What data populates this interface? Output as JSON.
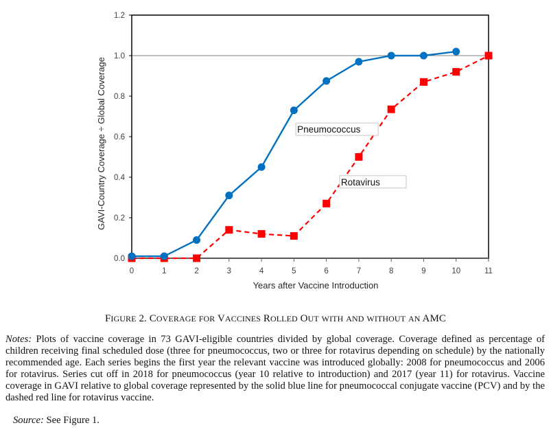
{
  "chart_data": {
    "type": "line",
    "title": "",
    "xlabel": "Years after Vaccine Introduction",
    "ylabel": "GAVI-Country Coverage ÷ Global Coverage",
    "xlim": [
      0,
      11
    ],
    "ylim": [
      0.0,
      1.2
    ],
    "x_ticks": [
      "0",
      "1",
      "2",
      "3",
      "4",
      "5",
      "6",
      "7",
      "8",
      "9",
      "10",
      "11"
    ],
    "y_ticks": [
      "0.0",
      "0.2",
      "0.4",
      "0.6",
      "0.8",
      "1.0",
      "1.2"
    ],
    "reference_line": 1.0,
    "grid": false,
    "series": [
      {
        "name": "Pneumococcus",
        "style": "solid",
        "marker": "circle",
        "color": "#0070C0",
        "x": [
          0,
          1,
          2,
          3,
          4,
          5,
          6,
          7,
          8,
          9,
          10
        ],
        "values": [
          0.01,
          0.01,
          0.09,
          0.31,
          0.45,
          0.73,
          0.875,
          0.97,
          1.0,
          1.0,
          1.02
        ]
      },
      {
        "name": "Rotavirus",
        "style": "dashed",
        "marker": "square",
        "color": "#FF0000",
        "x": [
          0,
          1,
          2,
          3,
          4,
          5,
          6,
          7,
          8,
          9,
          10,
          11
        ],
        "values": [
          0.0,
          0.0,
          0.0,
          0.14,
          0.12,
          0.11,
          0.27,
          0.5,
          0.735,
          0.87,
          0.92,
          1.0
        ]
      }
    ],
    "annotations": [
      {
        "text": "Pneumococcus",
        "x": 5.1,
        "y": 0.62
      },
      {
        "text": "Rotavirus",
        "x": 6.45,
        "y": 0.36
      }
    ]
  },
  "caption": {
    "figure_label_cap": "F",
    "figure_label_rest": "IGURE",
    "figure_number": "2.",
    "words": [
      {
        "cap": "C",
        "rest": "OVERAGE"
      },
      {
        "cap": "",
        "rest": "FOR"
      },
      {
        "cap": "V",
        "rest": "ACCINES"
      },
      {
        "cap": "R",
        "rest": "OLLED"
      },
      {
        "cap": "O",
        "rest": "UT"
      },
      {
        "cap": "",
        "rest": "WITH"
      },
      {
        "cap": "",
        "rest": "AND"
      },
      {
        "cap": "",
        "rest": "WITHOUT"
      },
      {
        "cap": "",
        "rest": "AN"
      },
      {
        "cap": "AMC",
        "rest": ""
      }
    ]
  },
  "notes": {
    "label": "Notes:",
    "text": "Plots of vaccine coverage in 73 GAVI-eligible countries divided by global coverage. Coverage defined as percentage of children receiving final scheduled dose (three for pneumococcus, two or three for rotavirus depending on schedule) by the nationally recommended age. Each series begins the first year the relevant vaccine was introduced globally: 2008 for pneumococcus and 2006 for rotavirus. Series cut off in 2018 for pneumococcus (year 10 relative to introduction) and 2017 (year 11) for rotavirus. Vaccine coverage in GAVI relative to global coverage represented by the solid blue line for pneumococcal conjugate vaccine (PCV) and by the dashed red line for rotavirus vaccine."
  },
  "source": {
    "label": "Source:",
    "text": "See Figure 1."
  }
}
